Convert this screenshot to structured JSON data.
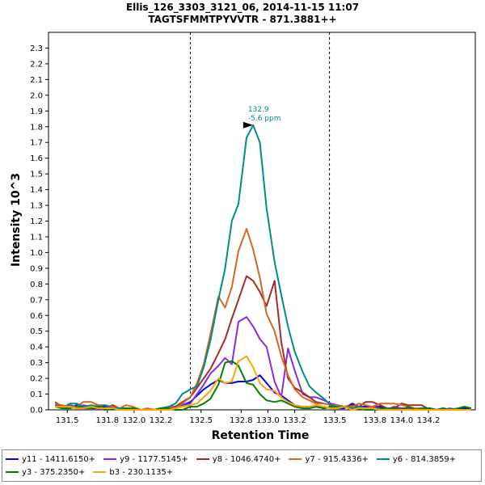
{
  "chart_data": {
    "type": "line",
    "title": "Ellis_126_3303_3121_06, 2014-11-15 11:07",
    "subtitle": "TAGTSFMMTPYVVTR - 871.3881++",
    "xlabel": "Retention Time",
    "ylabel": "Intensity 10^3",
    "xlim": [
      131.36,
      134.55
    ],
    "ylim": [
      0,
      2.4
    ],
    "xticks": [
      131.5,
      131.8,
      132.0,
      132.2,
      132.5,
      132.8,
      133.0,
      133.2,
      133.5,
      133.8,
      134.0,
      134.2
    ],
    "xtick_labels": [
      "131.5",
      "131.8",
      "132.0",
      "132.2",
      "132.5",
      "132.8",
      "133.0",
      "133.2",
      "133.5",
      "133.8",
      "134.0",
      "134.2"
    ],
    "yticks": [
      0.0,
      0.1,
      0.2,
      0.3,
      0.4,
      0.5,
      0.6,
      0.7,
      0.8,
      0.9,
      1.0,
      1.1,
      1.2,
      1.3,
      1.4,
      1.5,
      1.6,
      1.7,
      1.8,
      1.9,
      2.0,
      2.1,
      2.2,
      2.3
    ],
    "ytick_labels": [
      "0.0",
      "0.1",
      "0.2",
      "0.3",
      "0.4",
      "0.5",
      "0.6",
      "0.7",
      "0.8",
      "0.9",
      "1.0",
      "1.1",
      "1.2",
      "1.3",
      "1.4",
      "1.5",
      "1.6",
      "1.7",
      "1.8",
      "1.9",
      "2.0",
      "2.1",
      "2.2",
      "2.3"
    ],
    "vlines": [
      132.42,
      133.46
    ],
    "annotation": {
      "x": 132.9,
      "y": 1.81,
      "label_line1": "132.9",
      "label_line2": "-5.6 ppm",
      "color": "#008B8B"
    },
    "x": [
      131.41,
      131.46,
      131.52,
      131.57,
      131.62,
      131.68,
      131.73,
      131.78,
      131.84,
      131.89,
      131.94,
      131.99,
      132.05,
      132.1,
      132.15,
      132.2,
      132.26,
      132.31,
      132.36,
      132.42,
      132.47,
      132.52,
      132.57,
      132.63,
      132.68,
      132.73,
      132.78,
      132.84,
      132.89,
      132.94,
      132.99,
      133.05,
      133.1,
      133.15,
      133.2,
      133.26,
      133.31,
      133.36,
      133.42,
      133.47,
      133.52,
      133.57,
      133.63,
      133.68,
      133.73,
      133.78,
      133.84,
      133.89,
      133.94,
      134.0,
      134.05,
      134.1,
      134.15,
      134.21,
      134.26,
      134.31,
      134.36,
      134.42,
      134.47,
      134.52
    ],
    "series": [
      {
        "name": "y11 - 1411.6150+",
        "color": "#0000FF",
        "values": [
          0.03,
          0.02,
          0.01,
          0.03,
          0.02,
          0.01,
          0.01,
          0.02,
          0.01,
          0.0,
          0.0,
          0.01,
          0.0,
          0.0,
          0.0,
          0.01,
          0.01,
          0.02,
          0.03,
          0.05,
          0.09,
          0.13,
          0.16,
          0.19,
          0.17,
          0.17,
          0.18,
          0.18,
          0.19,
          0.22,
          0.17,
          0.11,
          0.09,
          0.06,
          0.03,
          0.02,
          0.02,
          0.02,
          0.01,
          0.02,
          0.01,
          0.01,
          0.04,
          0.02,
          0.02,
          0.02,
          0.02,
          0.01,
          0.01,
          0.01,
          0.01,
          0.0,
          0.0,
          0.01,
          0.0,
          0.01,
          0.0,
          0.0,
          0.01,
          0.0
        ]
      },
      {
        "name": "y9 - 1177.5145+",
        "color": "#8A2BE2",
        "values": [
          0.04,
          0.01,
          0.03,
          0.02,
          0.03,
          0.02,
          0.01,
          0.0,
          0.01,
          0.0,
          0.0,
          0.0,
          0.0,
          0.0,
          0.0,
          0.01,
          0.02,
          0.02,
          0.03,
          0.04,
          0.1,
          0.16,
          0.23,
          0.28,
          0.33,
          0.29,
          0.56,
          0.59,
          0.53,
          0.45,
          0.4,
          0.18,
          0.08,
          0.39,
          0.25,
          0.1,
          0.08,
          0.08,
          0.06,
          0.04,
          0.03,
          0.02,
          0.01,
          0.02,
          0.01,
          0.02,
          0.01,
          0.0,
          0.02,
          0.01,
          0.01,
          0.0,
          0.0,
          0.01,
          0.0,
          0.0,
          0.01,
          0.0,
          0.0,
          0.0
        ]
      },
      {
        "name": "y8 - 1046.4740+",
        "color": "#A52A2A",
        "values": [
          0.05,
          0.02,
          0.02,
          0.01,
          0.02,
          0.01,
          0.03,
          0.01,
          0.03,
          0.01,
          0.01,
          0.0,
          0.0,
          0.0,
          0.0,
          0.0,
          0.01,
          0.02,
          0.05,
          0.08,
          0.14,
          0.2,
          0.26,
          0.36,
          0.45,
          0.58,
          0.7,
          0.85,
          0.82,
          0.75,
          0.66,
          0.82,
          0.43,
          0.2,
          0.14,
          0.11,
          0.08,
          0.05,
          0.04,
          0.03,
          0.03,
          0.02,
          0.03,
          0.02,
          0.05,
          0.05,
          0.03,
          0.01,
          0.01,
          0.04,
          0.03,
          0.03,
          0.03,
          0.0,
          0.0,
          0.0,
          0.0,
          0.0,
          0.0,
          0.0
        ]
      },
      {
        "name": "y7 - 915.4336+",
        "color": "#D2691E",
        "values": [
          0.04,
          0.03,
          0.02,
          0.02,
          0.05,
          0.05,
          0.03,
          0.03,
          0.02,
          0.01,
          0.03,
          0.02,
          0.0,
          0.01,
          0.0,
          0.01,
          0.02,
          0.01,
          0.04,
          0.08,
          0.17,
          0.29,
          0.48,
          0.72,
          0.65,
          0.78,
          1.01,
          1.15,
          1.02,
          0.84,
          0.61,
          0.5,
          0.34,
          0.22,
          0.13,
          0.08,
          0.06,
          0.04,
          0.04,
          0.03,
          0.03,
          0.02,
          0.02,
          0.04,
          0.03,
          0.02,
          0.04,
          0.04,
          0.04,
          0.03,
          0.02,
          0.01,
          0.01,
          0.01,
          0.0,
          0.01,
          0.0,
          0.0,
          0.0,
          0.0
        ]
      },
      {
        "name": "y6 - 814.3859+",
        "color": "#008B8B",
        "values": [
          0.03,
          0.01,
          0.04,
          0.04,
          0.02,
          0.03,
          0.02,
          0.03,
          0.01,
          0.01,
          0.01,
          0.0,
          0.0,
          0.0,
          0.0,
          0.01,
          0.02,
          0.04,
          0.1,
          0.13,
          0.15,
          0.27,
          0.44,
          0.7,
          0.9,
          1.2,
          1.31,
          1.73,
          1.81,
          1.7,
          1.28,
          0.94,
          0.73,
          0.53,
          0.37,
          0.24,
          0.15,
          0.11,
          0.07,
          0.03,
          0.02,
          0.02,
          0.01,
          0.02,
          0.01,
          0.0,
          0.0,
          0.01,
          0.0,
          0.0,
          0.0,
          0.0,
          0.0,
          0.0,
          0.0,
          0.0,
          0.0,
          0.0,
          0.0,
          0.0
        ]
      },
      {
        "name": "y3 - 375.2350+",
        "color": "#008000",
        "values": [
          0.02,
          0.01,
          0.01,
          0.02,
          0.01,
          0.01,
          0.02,
          0.0,
          0.01,
          0.0,
          0.01,
          0.01,
          0.0,
          0.0,
          0.0,
          0.01,
          0.01,
          0.0,
          0.0,
          0.02,
          0.02,
          0.04,
          0.07,
          0.16,
          0.3,
          0.31,
          0.28,
          0.17,
          0.16,
          0.1,
          0.06,
          0.05,
          0.06,
          0.04,
          0.02,
          0.01,
          0.01,
          0.02,
          0.01,
          0.02,
          0.01,
          0.02,
          0.0,
          0.01,
          0.0,
          0.0,
          0.01,
          0.0,
          0.01,
          0.0,
          0.02,
          0.0,
          0.01,
          0.01,
          0.0,
          0.01,
          0.0,
          0.01,
          0.02,
          0.01
        ]
      },
      {
        "name": "b3 - 230.1135+",
        "color": "#FFA500",
        "values": [
          0.02,
          0.02,
          0.02,
          0.01,
          0.01,
          0.02,
          0.01,
          0.01,
          0.01,
          0.0,
          0.0,
          0.0,
          0.0,
          0.0,
          0.0,
          0.0,
          0.0,
          0.01,
          0.02,
          0.03,
          0.04,
          0.08,
          0.12,
          0.2,
          0.17,
          0.18,
          0.31,
          0.34,
          0.27,
          0.17,
          0.13,
          0.12,
          0.08,
          0.05,
          0.03,
          0.02,
          0.02,
          0.03,
          0.02,
          0.01,
          0.01,
          0.02,
          0.0,
          0.01,
          0.01,
          0.01,
          0.0,
          0.0,
          0.0,
          0.0,
          0.0,
          0.0,
          0.0,
          0.0,
          0.0,
          0.0,
          0.0,
          0.0,
          0.0,
          0.0
        ]
      }
    ]
  }
}
